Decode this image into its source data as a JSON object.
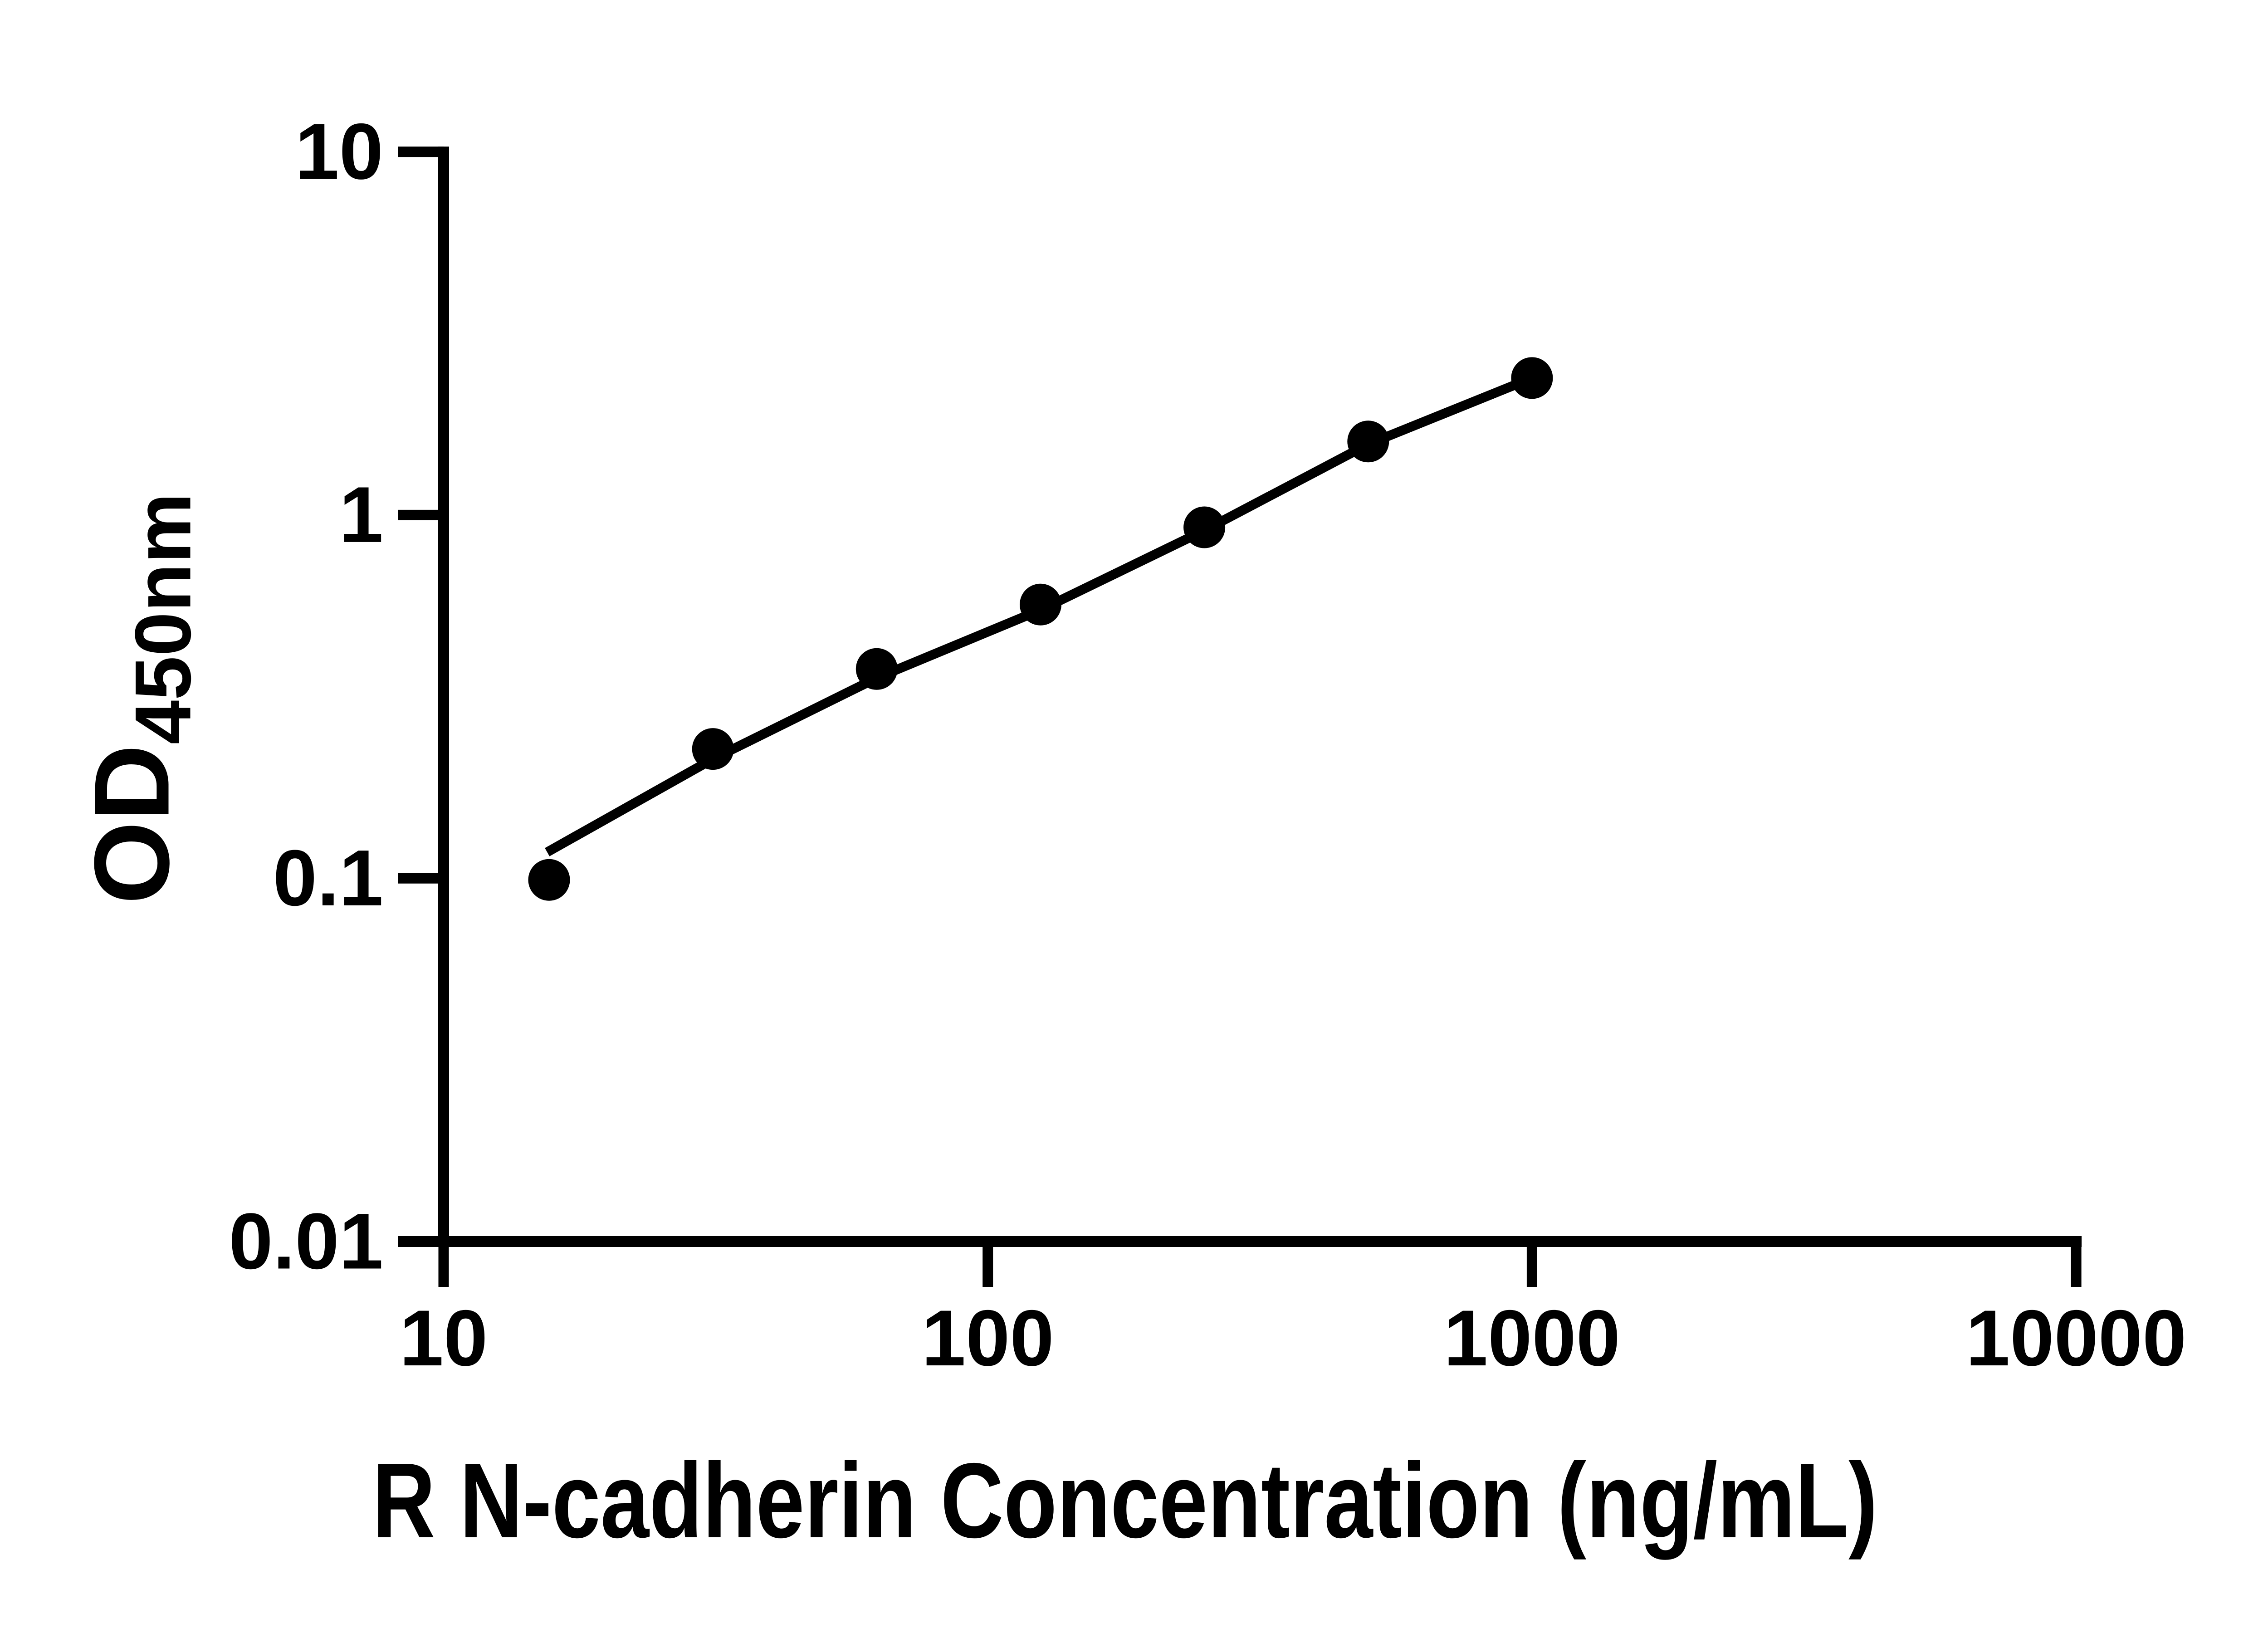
{
  "colors": {
    "ink": "#000000",
    "background": "#ffffff"
  },
  "chart_data": {
    "type": "scatter",
    "title": "",
    "xlabel": "R N-cadherin Concentration (ng/mL)",
    "ylabel": "OD450nm",
    "ylabel_main": "OD",
    "ylabel_subscript": "450nm",
    "x_scale": "log",
    "y_scale": "log",
    "xlim": [
      10,
      10000
    ],
    "ylim": [
      0.01,
      10
    ],
    "x_ticks": [
      10,
      100,
      1000,
      10000
    ],
    "y_ticks": [
      10,
      1,
      0.1,
      0.01
    ],
    "x_tick_labels": [
      "10",
      "100",
      "1000",
      "10000"
    ],
    "y_tick_labels": [
      "10",
      "1",
      "0.1",
      "0.01"
    ],
    "grid": false,
    "legend_position": "none",
    "marker_style": "filled-circle",
    "series": [
      {
        "name": "standard-curve-points",
        "color": "#000000",
        "points": [
          {
            "x": 15.625,
            "y": 0.099
          },
          {
            "x": 31.25,
            "y": 0.227
          },
          {
            "x": 62.5,
            "y": 0.377
          },
          {
            "x": 125,
            "y": 0.567
          },
          {
            "x": 250,
            "y": 0.925
          },
          {
            "x": 500,
            "y": 1.594
          },
          {
            "x": 1000,
            "y": 2.383
          }
        ]
      }
    ],
    "trend_line": {
      "name": "fitted-curve",
      "color": "#000000",
      "points": [
        {
          "x": 15.5,
          "y": 0.118
        },
        {
          "x": 31.25,
          "y": 0.213
        },
        {
          "x": 62.5,
          "y": 0.356
        },
        {
          "x": 125,
          "y": 0.548
        },
        {
          "x": 250,
          "y": 0.907
        },
        {
          "x": 500,
          "y": 1.567
        },
        {
          "x": 1000,
          "y": 2.383
        }
      ]
    }
  }
}
